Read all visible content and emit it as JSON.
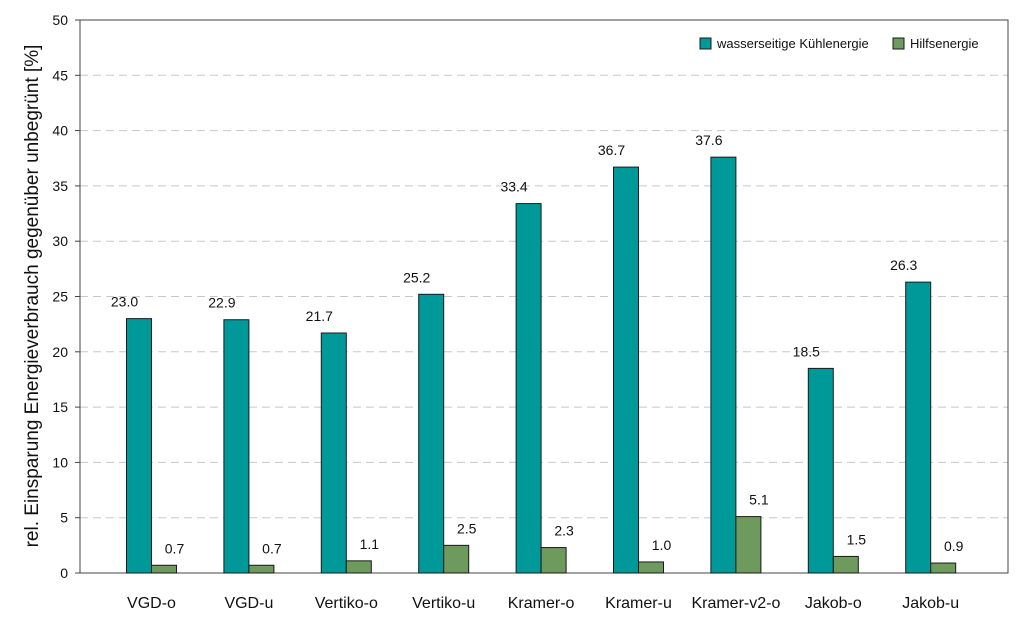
{
  "chart_data": {
    "type": "bar",
    "title": "",
    "xlabel": "",
    "ylabel": "rel. Einsparung Energieverbrauch gegenüber unbegrünt [%]",
    "ylim": [
      0,
      50
    ],
    "yticks": [
      0,
      5,
      10,
      15,
      20,
      25,
      30,
      35,
      40,
      45,
      50
    ],
    "grid": true,
    "legend_position": "top-right",
    "categories": [
      "VGD-o",
      "VGD-u",
      "Vertiko-o",
      "Vertiko-u",
      "Kramer-o",
      "Kramer-u",
      "Kramer-v2-o",
      "Jakob-o",
      "Jakob-u"
    ],
    "series": [
      {
        "name": "wasserseitige Kühlenergie",
        "color": "#009999",
        "values": [
          23.0,
          22.9,
          21.7,
          25.2,
          33.4,
          36.7,
          37.6,
          18.5,
          26.3
        ],
        "labels": [
          "23.0",
          "22.9",
          "21.7",
          "25.2",
          "33.4",
          "36.7",
          "37.6",
          "18.5",
          "26.3"
        ]
      },
      {
        "name": "Hilfsenergie",
        "color": "#6f9a5e",
        "values": [
          0.7,
          0.7,
          1.1,
          2.5,
          2.3,
          1.0,
          5.1,
          1.5,
          0.9
        ],
        "labels": [
          "0.7",
          "0.7",
          "1.1",
          "2.5",
          "2.3",
          "1.0",
          "5.1",
          "1.5",
          "0.9"
        ]
      }
    ]
  }
}
